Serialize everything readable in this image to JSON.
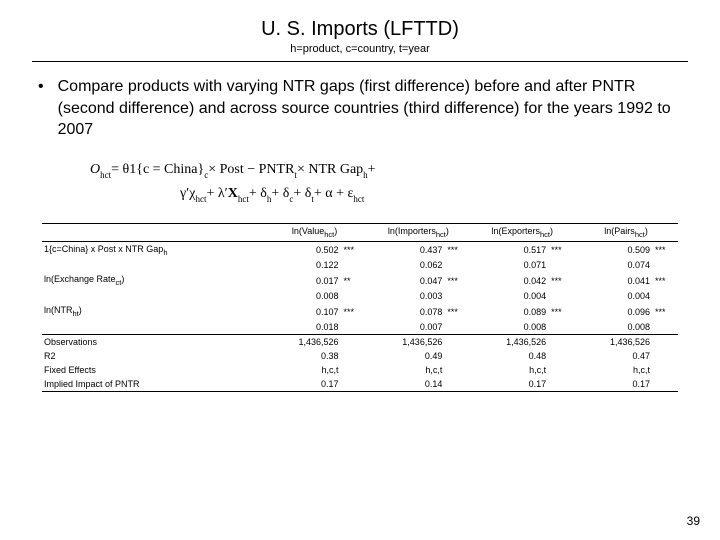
{
  "title": "U. S. Imports (LFTTD)",
  "subtitle": "h=product, c=country, t=year",
  "bullet": "Compare products with varying NTR gaps (first difference) before and after PNTR (second difference) and across source countries (third difference) for the years 1992 to 2007",
  "page_number": "39",
  "equation": {
    "lhs": "O",
    "lhs_sub": "hct",
    "terms": [
      {
        "t": "=  θ1{c = China}"
      },
      {
        "sub": "c"
      },
      {
        "t": " × Post − PNTR"
      },
      {
        "sub": "t"
      },
      {
        "t": " × NTR Gap"
      },
      {
        "sub": "h"
      },
      {
        "t": " +"
      }
    ],
    "line2": [
      {
        "t": "γ′χ"
      },
      {
        "sub": "hct"
      },
      {
        "t": " + λ′"
      },
      {
        "bold": "X"
      },
      {
        "sub": "hct"
      },
      {
        "t": " + δ"
      },
      {
        "sub": "h"
      },
      {
        "t": " + δ"
      },
      {
        "sub": "c"
      },
      {
        "t": " + δ"
      },
      {
        "sub": "t"
      },
      {
        "t": " + α + ε"
      },
      {
        "sub": "hct"
      }
    ]
  },
  "table": {
    "columns": [
      "",
      "ln(Value_hct)",
      "ln(Importers_hct)",
      "ln(Exporters_hct)",
      "ln(Pairs_hct)"
    ],
    "rows": [
      {
        "label": "1{c=China} x Post x NTR Gap_h",
        "vals": [
          "0.502",
          "0.437",
          "0.517",
          "0.509"
        ],
        "sigs": [
          "***",
          "***",
          "***",
          "***"
        ]
      },
      {
        "label": "",
        "vals": [
          "0.122",
          "0.062",
          "0.071",
          "0.074"
        ],
        "sigs": [
          "",
          "",
          "",
          ""
        ]
      },
      {
        "label": "ln(Exchange Rate_ct)",
        "vals": [
          "0.017",
          "0.047",
          "0.042",
          "0.041"
        ],
        "sigs": [
          "**",
          "***",
          "***",
          "***"
        ]
      },
      {
        "label": "",
        "vals": [
          "0.008",
          "0.003",
          "0.004",
          "0.004"
        ],
        "sigs": [
          "",
          "",
          "",
          ""
        ]
      },
      {
        "label": "ln(NTR_ht)",
        "vals": [
          "0.107",
          "0.078",
          "0.089",
          "0.096"
        ],
        "sigs": [
          "***",
          "***",
          "***",
          "***"
        ]
      },
      {
        "label": "",
        "vals": [
          "0.018",
          "0.007",
          "0.008",
          "0.008"
        ],
        "sigs": [
          "",
          "",
          "",
          ""
        ]
      }
    ],
    "footer": [
      {
        "label": "Observations",
        "vals": [
          "1,436,526",
          "1,436,526",
          "1,436,526",
          "1,436,526"
        ]
      },
      {
        "label": "R2",
        "vals": [
          "0.38",
          "0.49",
          "0.48",
          "0.47"
        ]
      },
      {
        "label": "Fixed Effects",
        "vals": [
          "h,c,t",
          "h,c,t",
          "h,c,t",
          "h,c,t"
        ]
      },
      {
        "label": "Implied Impact of PNTR",
        "vals": [
          "0.17",
          "0.14",
          "0.17",
          "0.17"
        ]
      }
    ],
    "font_size": 9,
    "border_color": "#000000"
  }
}
